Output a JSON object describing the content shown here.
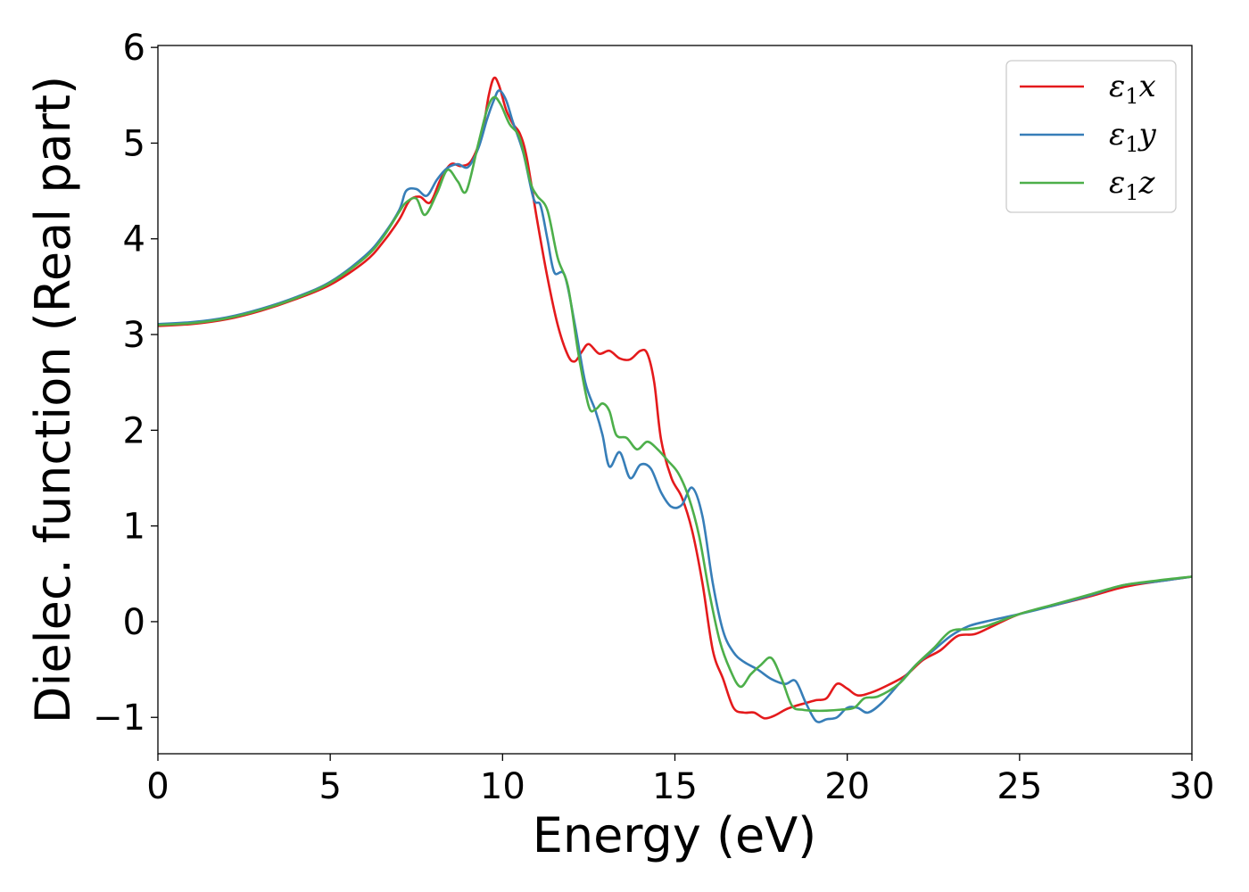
{
  "chart_data": {
    "type": "line",
    "title": "",
    "xlabel": "Energy (eV)",
    "ylabel": "Dielec. function (Real part)",
    "xlim": [
      0,
      30
    ],
    "ylim": [
      -1.38,
      6.02
    ],
    "xticks": [
      0,
      5,
      10,
      15,
      20,
      25,
      30
    ],
    "xtick_labels": [
      "0",
      "5",
      "10",
      "15",
      "20",
      "25",
      "30"
    ],
    "yticks": [
      -1,
      0,
      1,
      2,
      3,
      4,
      5,
      6
    ],
    "ytick_labels": [
      "−1",
      "0",
      "1",
      "2",
      "3",
      "4",
      "5",
      "6"
    ],
    "grid": false,
    "legend_position": "top-right",
    "series": [
      {
        "name": "ε₁x",
        "legend_base": "ε",
        "legend_sub": "1",
        "legend_var": "x",
        "color": "#e41a1c",
        "points": [
          [
            0,
            3.09
          ],
          [
            1,
            3.11
          ],
          [
            2,
            3.16
          ],
          [
            3,
            3.25
          ],
          [
            4,
            3.37
          ],
          [
            5,
            3.52
          ],
          [
            6,
            3.76
          ],
          [
            6.5,
            3.95
          ],
          [
            7,
            4.2
          ],
          [
            7.3,
            4.4
          ],
          [
            7.6,
            4.44
          ],
          [
            7.9,
            4.38
          ],
          [
            8.2,
            4.62
          ],
          [
            8.5,
            4.78
          ],
          [
            8.8,
            4.76
          ],
          [
            9.1,
            4.82
          ],
          [
            9.4,
            5.1
          ],
          [
            9.6,
            5.5
          ],
          [
            9.75,
            5.68
          ],
          [
            9.9,
            5.6
          ],
          [
            10.1,
            5.35
          ],
          [
            10.3,
            5.2
          ],
          [
            10.5,
            5.1
          ],
          [
            10.7,
            4.85
          ],
          [
            11,
            4.2
          ],
          [
            11.3,
            3.6
          ],
          [
            11.6,
            3.1
          ],
          [
            11.9,
            2.78
          ],
          [
            12.1,
            2.72
          ],
          [
            12.3,
            2.82
          ],
          [
            12.5,
            2.9
          ],
          [
            12.8,
            2.8
          ],
          [
            13.1,
            2.83
          ],
          [
            13.4,
            2.75
          ],
          [
            13.7,
            2.74
          ],
          [
            14,
            2.83
          ],
          [
            14.2,
            2.8
          ],
          [
            14.4,
            2.5
          ],
          [
            14.6,
            1.9
          ],
          [
            14.9,
            1.5
          ],
          [
            15.2,
            1.3
          ],
          [
            15.5,
            0.95
          ],
          [
            15.8,
            0.4
          ],
          [
            16.1,
            -0.3
          ],
          [
            16.4,
            -0.6
          ],
          [
            16.7,
            -0.9
          ],
          [
            17,
            -0.95
          ],
          [
            17.3,
            -0.95
          ],
          [
            17.6,
            -1.01
          ],
          [
            17.9,
            -0.98
          ],
          [
            18.2,
            -0.92
          ],
          [
            18.5,
            -0.88
          ],
          [
            18.8,
            -0.85
          ],
          [
            19.1,
            -0.82
          ],
          [
            19.4,
            -0.8
          ],
          [
            19.7,
            -0.65
          ],
          [
            20,
            -0.7
          ],
          [
            20.3,
            -0.77
          ],
          [
            20.7,
            -0.74
          ],
          [
            21.2,
            -0.66
          ],
          [
            21.7,
            -0.56
          ],
          [
            22.2,
            -0.4
          ],
          [
            22.7,
            -0.3
          ],
          [
            23.2,
            -0.15
          ],
          [
            23.7,
            -0.13
          ],
          [
            24.2,
            -0.05
          ],
          [
            25,
            0.08
          ],
          [
            26,
            0.17
          ],
          [
            27,
            0.26
          ],
          [
            28,
            0.36
          ],
          [
            29,
            0.42
          ],
          [
            30,
            0.47
          ]
        ]
      },
      {
        "name": "ε₁y",
        "legend_base": "ε",
        "legend_sub": "1",
        "legend_var": "y",
        "color": "#377eb8",
        "points": [
          [
            0,
            3.11
          ],
          [
            1,
            3.13
          ],
          [
            2,
            3.18
          ],
          [
            3,
            3.27
          ],
          [
            4,
            3.39
          ],
          [
            5,
            3.55
          ],
          [
            6,
            3.82
          ],
          [
            6.5,
            4.02
          ],
          [
            7,
            4.3
          ],
          [
            7.2,
            4.5
          ],
          [
            7.5,
            4.52
          ],
          [
            7.8,
            4.45
          ],
          [
            8.1,
            4.62
          ],
          [
            8.4,
            4.74
          ],
          [
            8.7,
            4.78
          ],
          [
            9,
            4.75
          ],
          [
            9.3,
            4.95
          ],
          [
            9.55,
            5.25
          ],
          [
            9.75,
            5.45
          ],
          [
            9.9,
            5.55
          ],
          [
            10.1,
            5.45
          ],
          [
            10.3,
            5.22
          ],
          [
            10.6,
            4.9
          ],
          [
            10.9,
            4.42
          ],
          [
            11.1,
            4.35
          ],
          [
            11.3,
            4.0
          ],
          [
            11.5,
            3.65
          ],
          [
            11.8,
            3.62
          ],
          [
            12.1,
            3.1
          ],
          [
            12.4,
            2.5
          ],
          [
            12.7,
            2.2
          ],
          [
            12.9,
            1.95
          ],
          [
            13.1,
            1.62
          ],
          [
            13.4,
            1.77
          ],
          [
            13.7,
            1.5
          ],
          [
            14,
            1.64
          ],
          [
            14.3,
            1.6
          ],
          [
            14.6,
            1.35
          ],
          [
            14.9,
            1.2
          ],
          [
            15.2,
            1.22
          ],
          [
            15.5,
            1.4
          ],
          [
            15.8,
            1.1
          ],
          [
            16.1,
            0.4
          ],
          [
            16.4,
            -0.1
          ],
          [
            16.7,
            -0.32
          ],
          [
            17,
            -0.42
          ],
          [
            17.4,
            -0.5
          ],
          [
            17.8,
            -0.6
          ],
          [
            18.2,
            -0.65
          ],
          [
            18.5,
            -0.62
          ],
          [
            18.8,
            -0.85
          ],
          [
            19.1,
            -1.04
          ],
          [
            19.4,
            -1.02
          ],
          [
            19.7,
            -1.0
          ],
          [
            20,
            -0.9
          ],
          [
            20.3,
            -0.9
          ],
          [
            20.6,
            -0.95
          ],
          [
            21,
            -0.85
          ],
          [
            21.5,
            -0.65
          ],
          [
            22,
            -0.45
          ],
          [
            22.5,
            -0.3
          ],
          [
            23,
            -0.15
          ],
          [
            23.5,
            -0.05
          ],
          [
            24,
            0.0
          ],
          [
            25,
            0.08
          ],
          [
            26,
            0.17
          ],
          [
            27,
            0.27
          ],
          [
            28,
            0.38
          ],
          [
            29,
            0.42
          ],
          [
            30,
            0.47
          ]
        ]
      },
      {
        "name": "ε₁z",
        "legend_base": "ε",
        "legend_sub": "1",
        "legend_var": "z",
        "color": "#4daf4a",
        "points": [
          [
            0,
            3.1
          ],
          [
            1,
            3.12
          ],
          [
            2,
            3.17
          ],
          [
            3,
            3.26
          ],
          [
            4,
            3.38
          ],
          [
            5,
            3.54
          ],
          [
            6,
            3.8
          ],
          [
            6.5,
            4.0
          ],
          [
            7,
            4.28
          ],
          [
            7.2,
            4.38
          ],
          [
            7.5,
            4.42
          ],
          [
            7.75,
            4.25
          ],
          [
            8.1,
            4.48
          ],
          [
            8.4,
            4.72
          ],
          [
            8.7,
            4.6
          ],
          [
            8.95,
            4.5
          ],
          [
            9.3,
            5.0
          ],
          [
            9.55,
            5.35
          ],
          [
            9.75,
            5.48
          ],
          [
            9.95,
            5.4
          ],
          [
            10.2,
            5.2
          ],
          [
            10.5,
            5.05
          ],
          [
            10.8,
            4.6
          ],
          [
            11,
            4.45
          ],
          [
            11.3,
            4.3
          ],
          [
            11.6,
            3.8
          ],
          [
            11.9,
            3.5
          ],
          [
            12.2,
            2.8
          ],
          [
            12.5,
            2.25
          ],
          [
            12.7,
            2.22
          ],
          [
            12.9,
            2.28
          ],
          [
            13.1,
            2.2
          ],
          [
            13.3,
            1.95
          ],
          [
            13.6,
            1.92
          ],
          [
            13.9,
            1.8
          ],
          [
            14.2,
            1.88
          ],
          [
            14.5,
            1.8
          ],
          [
            14.8,
            1.68
          ],
          [
            15.1,
            1.55
          ],
          [
            15.4,
            1.3
          ],
          [
            15.7,
            0.9
          ],
          [
            16,
            0.3
          ],
          [
            16.3,
            -0.2
          ],
          [
            16.6,
            -0.5
          ],
          [
            16.9,
            -0.68
          ],
          [
            17.2,
            -0.55
          ],
          [
            17.5,
            -0.45
          ],
          [
            17.8,
            -0.38
          ],
          [
            18.1,
            -0.6
          ],
          [
            18.4,
            -0.88
          ],
          [
            18.7,
            -0.92
          ],
          [
            19,
            -0.93
          ],
          [
            19.4,
            -0.93
          ],
          [
            19.8,
            -0.92
          ],
          [
            20.2,
            -0.9
          ],
          [
            20.5,
            -0.8
          ],
          [
            20.9,
            -0.78
          ],
          [
            21.5,
            -0.65
          ],
          [
            22,
            -0.45
          ],
          [
            22.5,
            -0.28
          ],
          [
            23,
            -0.1
          ],
          [
            23.5,
            -0.08
          ],
          [
            24,
            -0.05
          ],
          [
            25,
            0.08
          ],
          [
            26,
            0.18
          ],
          [
            27,
            0.28
          ],
          [
            28,
            0.38
          ],
          [
            29,
            0.43
          ],
          [
            30,
            0.47
          ]
        ]
      }
    ]
  }
}
